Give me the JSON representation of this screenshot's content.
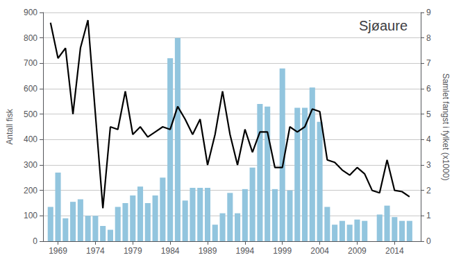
{
  "chart_data": {
    "type": "bar",
    "title": "Sjøaure",
    "ylabel": "Antall fisk",
    "y2label": "Samlet fangst i fylket (x1000)",
    "x": [
      1968,
      1969,
      1970,
      1971,
      1972,
      1973,
      1974,
      1975,
      1976,
      1977,
      1978,
      1979,
      1980,
      1981,
      1982,
      1983,
      1984,
      1985,
      1986,
      1987,
      1988,
      1989,
      1990,
      1991,
      1992,
      1993,
      1994,
      1995,
      1996,
      1997,
      1998,
      1999,
      2000,
      2001,
      2002,
      2003,
      2004,
      2005,
      2006,
      2007,
      2008,
      2009,
      2010,
      2011,
      2012,
      2013,
      2014,
      2015,
      2016
    ],
    "series": [
      {
        "type": "bar",
        "color": "#92C5DE",
        "values": [
          135,
          270,
          90,
          155,
          165,
          100,
          100,
          60,
          45,
          135,
          150,
          180,
          215,
          150,
          180,
          250,
          720,
          800,
          160,
          210,
          210,
          210,
          65,
          110,
          190,
          110,
          205,
          290,
          540,
          530,
          205,
          680,
          200,
          525,
          525,
          605,
          470,
          135,
          65,
          80,
          65,
          85,
          80,
          0,
          105,
          140,
          95,
          80,
          80
        ]
      },
      {
        "type": "line",
        "color": "#000000",
        "axis": "y2",
        "values": [
          8.6,
          7.2,
          7.6,
          5.0,
          7.6,
          8.7,
          5.0,
          1.3,
          4.5,
          4.4,
          5.9,
          4.2,
          4.5,
          4.1,
          4.3,
          4.5,
          4.4,
          5.3,
          4.8,
          4.2,
          4.8,
          3.0,
          4.2,
          5.9,
          4.2,
          3.0,
          4.4,
          3.5,
          4.3,
          4.3,
          2.9,
          2.9,
          4.5,
          4.3,
          4.5,
          5.2,
          5.1,
          3.2,
          3.1,
          2.8,
          2.6,
          2.9,
          2.65,
          2.0,
          1.9,
          3.2,
          2.0,
          1.95,
          1.75
        ]
      }
    ],
    "xlim": [
      1967.0,
      2017.5
    ],
    "xticks": [
      1969,
      1974,
      1979,
      1984,
      1989,
      1994,
      1999,
      2004,
      2009,
      2014
    ],
    "ylim": [
      0,
      900
    ],
    "yticks": [
      0,
      100,
      200,
      300,
      400,
      500,
      600,
      700,
      800,
      900
    ],
    "y2lim": [
      0,
      9
    ],
    "y2ticks": [
      0,
      1,
      2,
      3,
      4,
      5,
      6,
      7,
      8,
      9
    ],
    "grid": true
  }
}
